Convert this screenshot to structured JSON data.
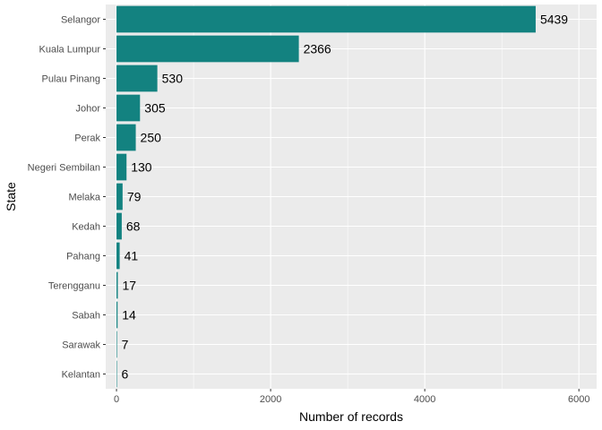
{
  "chart_data": {
    "type": "bar",
    "orientation": "horizontal",
    "categories": [
      "Selangor",
      "Kuala Lumpur",
      "Pulau Pinang",
      "Johor",
      "Perak",
      "Negeri Sembilan",
      "Melaka",
      "Kedah",
      "Pahang",
      "Terengganu",
      "Sabah",
      "Sarawak",
      "Kelantan"
    ],
    "values": [
      5439,
      2366,
      530,
      305,
      250,
      130,
      79,
      68,
      41,
      17,
      14,
      7,
      6
    ],
    "xlabel": "Number of records",
    "ylabel": "State",
    "xlim": [
      -140,
      6230
    ],
    "x_ticks": [
      0,
      2000,
      4000,
      6000
    ],
    "x_tick_labels": [
      "0",
      "2000",
      "4000",
      "6000"
    ],
    "grid": true,
    "colors": {
      "bar": "#138280",
      "panel": "#ebebeb",
      "grid_major": "#ffffff"
    }
  }
}
